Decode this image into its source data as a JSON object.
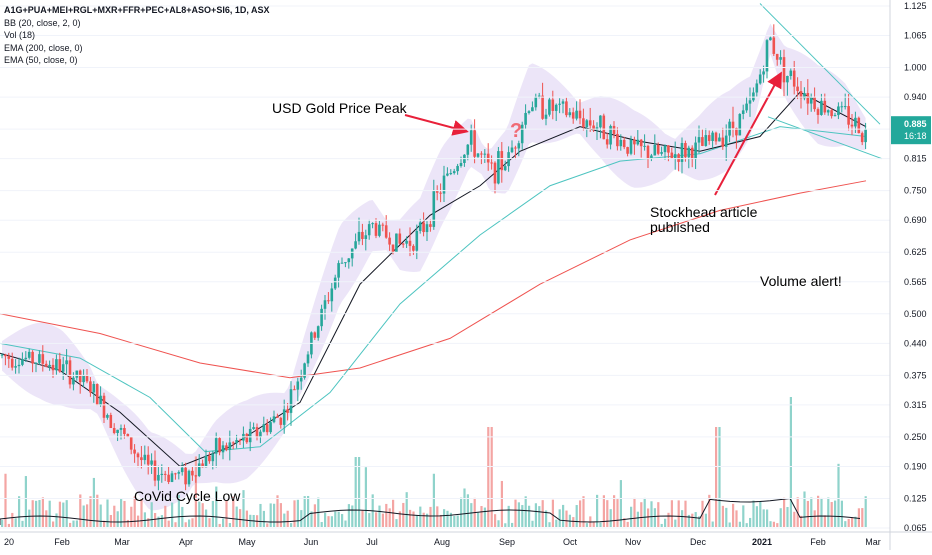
{
  "chart_data": {
    "type": "candlestick",
    "title": "A1G+PUA+MEI+RGL+MXR+FFR+PEC+AL8+ASO+SI6, 1D, ASX",
    "indicators": [
      "BB (20, close, 2, 0)",
      "Vol (18)",
      "EMA (200, close, 0)",
      "EMA (50, close, 0)"
    ],
    "y_axis": {
      "ticks": [
        "1.125",
        "1.065",
        "1.000",
        "0.940",
        "0.875",
        "0.815",
        "0.750",
        "0.690",
        "0.625",
        "0.565",
        "0.500",
        "0.440",
        "0.375",
        "0.315",
        "0.250",
        "0.190",
        "0.125",
        "0.065"
      ],
      "min": 0.065,
      "max": 1.125
    },
    "x_axis": {
      "labels": [
        "20",
        "Feb",
        "Mar",
        "Apr",
        "May",
        "Jun",
        "Jul",
        "Aug",
        "Sep",
        "Oct",
        "Nov",
        "Dec",
        "2021",
        "Feb",
        "Mar"
      ],
      "bold": [
        "2021"
      ]
    },
    "last_price": {
      "value": "0.885",
      "countdown": "16:18"
    },
    "close_series": [
      [
        "Jan",
        0.415
      ],
      [
        "Feb",
        0.39
      ],
      [
        "Mar",
        0.255
      ],
      [
        "Apr",
        0.175
      ],
      [
        "May",
        0.24
      ],
      [
        "Jun",
        0.44
      ],
      [
        "Jul",
        0.68
      ],
      [
        "Aug",
        0.765
      ],
      [
        "Sep",
        0.81
      ],
      [
        "Oct",
        0.905
      ],
      [
        "Nov",
        0.835
      ],
      [
        "Dec",
        0.835
      ],
      [
        "Jan 2021",
        1.0
      ],
      [
        "Feb 2021",
        0.925
      ],
      [
        "Mar 2021",
        0.865
      ]
    ],
    "annotations": [
      "USD Gold Price Peak",
      "?",
      "Stockhead article",
      "published",
      "Volume alert!",
      "CoVid Cycle Low"
    ]
  },
  "colors": {
    "up": "#26a69a",
    "down": "#ef5350",
    "ema200": "#ef5350",
    "ema50": "#4dc4c0",
    "bb_fill": "#e6dcf5",
    "basis": "#131722",
    "arrow": "#e8203a",
    "question": "#f06b75",
    "price_tag": "#22a89b",
    "axis_text": "#131722",
    "grid": "#f0f3fa"
  }
}
